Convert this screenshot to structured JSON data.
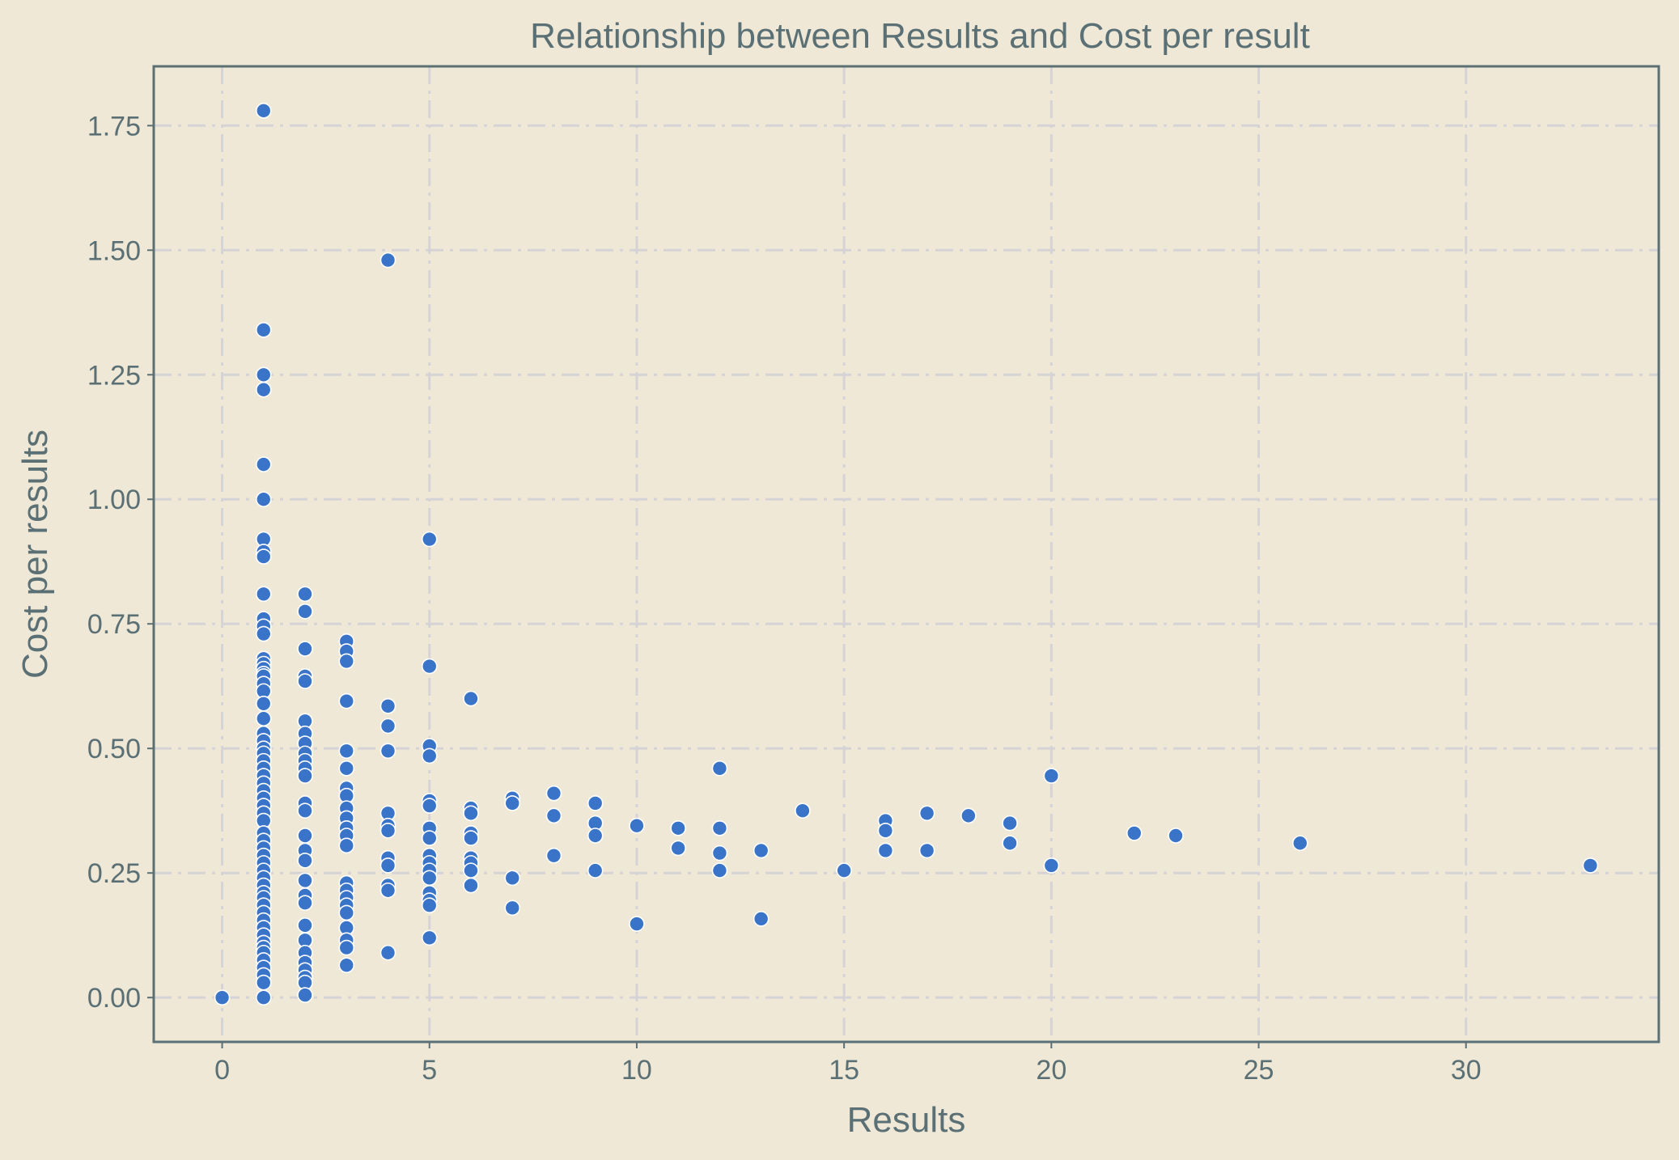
{
  "chart_data": {
    "type": "scatter",
    "title": "Relationship between Results and Cost per result",
    "xlabel": "Results",
    "ylabel": "Cost per results",
    "xlim": [
      -1.65,
      34.65
    ],
    "ylim": [
      -0.089,
      1.869
    ],
    "x_ticks": [
      0,
      5,
      10,
      15,
      20,
      25,
      30
    ],
    "x_tick_labels": [
      "0",
      "5",
      "10",
      "15",
      "20",
      "25",
      "30"
    ],
    "y_ticks": [
      0.0,
      0.25,
      0.5,
      0.75,
      1.0,
      1.25,
      1.5,
      1.75
    ],
    "y_tick_labels": [
      "0.00",
      "0.25",
      "0.50",
      "0.75",
      "1.00",
      "1.25",
      "1.50",
      "1.75"
    ],
    "grid": true,
    "colors": {
      "background": "#efe8d6",
      "point": "#3a74c9",
      "point_edge": "#ffffff",
      "text": "#5b7075",
      "grid": "#d6d3d6"
    },
    "points": [
      [
        0,
        0.0
      ],
      [
        1,
        1.78
      ],
      [
        1,
        1.34
      ],
      [
        1,
        1.25
      ],
      [
        1,
        1.22
      ],
      [
        1,
        1.07
      ],
      [
        1,
        1.0
      ],
      [
        1,
        0.92
      ],
      [
        1,
        0.895
      ],
      [
        1,
        0.885
      ],
      [
        1,
        0.81
      ],
      [
        1,
        0.76
      ],
      [
        1,
        0.745
      ],
      [
        1,
        0.73
      ],
      [
        1,
        0.68
      ],
      [
        1,
        0.67
      ],
      [
        1,
        0.66
      ],
      [
        1,
        0.65
      ],
      [
        1,
        0.645
      ],
      [
        1,
        0.63
      ],
      [
        1,
        0.615
      ],
      [
        1,
        0.59
      ],
      [
        1,
        0.56
      ],
      [
        1,
        0.53
      ],
      [
        1,
        0.515
      ],
      [
        1,
        0.5
      ],
      [
        1,
        0.49
      ],
      [
        1,
        0.475
      ],
      [
        1,
        0.46
      ],
      [
        1,
        0.445
      ],
      [
        1,
        0.43
      ],
      [
        1,
        0.415
      ],
      [
        1,
        0.4
      ],
      [
        1,
        0.385
      ],
      [
        1,
        0.37
      ],
      [
        1,
        0.355
      ],
      [
        1,
        0.33
      ],
      [
        1,
        0.315
      ],
      [
        1,
        0.3
      ],
      [
        1,
        0.285
      ],
      [
        1,
        0.27
      ],
      [
        1,
        0.255
      ],
      [
        1,
        0.24
      ],
      [
        1,
        0.225
      ],
      [
        1,
        0.21
      ],
      [
        1,
        0.2
      ],
      [
        1,
        0.185
      ],
      [
        1,
        0.17
      ],
      [
        1,
        0.155
      ],
      [
        1,
        0.14
      ],
      [
        1,
        0.125
      ],
      [
        1,
        0.11
      ],
      [
        1,
        0.1
      ],
      [
        1,
        0.09
      ],
      [
        1,
        0.075
      ],
      [
        1,
        0.06
      ],
      [
        1,
        0.045
      ],
      [
        1,
        0.03
      ],
      [
        1,
        0.0
      ],
      [
        2,
        0.81
      ],
      [
        2,
        0.775
      ],
      [
        2,
        0.7
      ],
      [
        2,
        0.645
      ],
      [
        2,
        0.635
      ],
      [
        2,
        0.555
      ],
      [
        2,
        0.53
      ],
      [
        2,
        0.51
      ],
      [
        2,
        0.49
      ],
      [
        2,
        0.475
      ],
      [
        2,
        0.46
      ],
      [
        2,
        0.445
      ],
      [
        2,
        0.39
      ],
      [
        2,
        0.375
      ],
      [
        2,
        0.325
      ],
      [
        2,
        0.295
      ],
      [
        2,
        0.275
      ],
      [
        2,
        0.235
      ],
      [
        2,
        0.205
      ],
      [
        2,
        0.19
      ],
      [
        2,
        0.145
      ],
      [
        2,
        0.115
      ],
      [
        2,
        0.09
      ],
      [
        2,
        0.07
      ],
      [
        2,
        0.055
      ],
      [
        2,
        0.04
      ],
      [
        2,
        0.03
      ],
      [
        2,
        0.005
      ],
      [
        3,
        0.715
      ],
      [
        3,
        0.695
      ],
      [
        3,
        0.675
      ],
      [
        3,
        0.595
      ],
      [
        3,
        0.495
      ],
      [
        3,
        0.46
      ],
      [
        3,
        0.42
      ],
      [
        3,
        0.405
      ],
      [
        3,
        0.38
      ],
      [
        3,
        0.36
      ],
      [
        3,
        0.34
      ],
      [
        3,
        0.325
      ],
      [
        3,
        0.305
      ],
      [
        3,
        0.23
      ],
      [
        3,
        0.215
      ],
      [
        3,
        0.2
      ],
      [
        3,
        0.185
      ],
      [
        3,
        0.17
      ],
      [
        3,
        0.14
      ],
      [
        3,
        0.115
      ],
      [
        3,
        0.1
      ],
      [
        3,
        0.065
      ],
      [
        4,
        1.48
      ],
      [
        4,
        0.585
      ],
      [
        4,
        0.545
      ],
      [
        4,
        0.495
      ],
      [
        4,
        0.37
      ],
      [
        4,
        0.345
      ],
      [
        4,
        0.335
      ],
      [
        4,
        0.28
      ],
      [
        4,
        0.265
      ],
      [
        4,
        0.225
      ],
      [
        4,
        0.215
      ],
      [
        4,
        0.09
      ],
      [
        5,
        0.92
      ],
      [
        5,
        0.665
      ],
      [
        5,
        0.505
      ],
      [
        5,
        0.485
      ],
      [
        5,
        0.395
      ],
      [
        5,
        0.385
      ],
      [
        5,
        0.34
      ],
      [
        5,
        0.32
      ],
      [
        5,
        0.285
      ],
      [
        5,
        0.27
      ],
      [
        5,
        0.255
      ],
      [
        5,
        0.24
      ],
      [
        5,
        0.21
      ],
      [
        5,
        0.195
      ],
      [
        5,
        0.185
      ],
      [
        5,
        0.12
      ],
      [
        6,
        0.6
      ],
      [
        6,
        0.38
      ],
      [
        6,
        0.37
      ],
      [
        6,
        0.33
      ],
      [
        6,
        0.32
      ],
      [
        6,
        0.28
      ],
      [
        6,
        0.27
      ],
      [
        6,
        0.255
      ],
      [
        6,
        0.225
      ],
      [
        7,
        0.4
      ],
      [
        7,
        0.39
      ],
      [
        7,
        0.24
      ],
      [
        7,
        0.18
      ],
      [
        8,
        0.41
      ],
      [
        8,
        0.365
      ],
      [
        8,
        0.285
      ],
      [
        9,
        0.39
      ],
      [
        9,
        0.35
      ],
      [
        9,
        0.325
      ],
      [
        9,
        0.255
      ],
      [
        10,
        0.345
      ],
      [
        10,
        0.148
      ],
      [
        11,
        0.34
      ],
      [
        11,
        0.3
      ],
      [
        12,
        0.46
      ],
      [
        12,
        0.34
      ],
      [
        12,
        0.29
      ],
      [
        12,
        0.255
      ],
      [
        13,
        0.295
      ],
      [
        13,
        0.158
      ],
      [
        14,
        0.375
      ],
      [
        15,
        0.255
      ],
      [
        16,
        0.355
      ],
      [
        16,
        0.335
      ],
      [
        16,
        0.295
      ],
      [
        17,
        0.37
      ],
      [
        17,
        0.295
      ],
      [
        18,
        0.365
      ],
      [
        19,
        0.35
      ],
      [
        19,
        0.31
      ],
      [
        20,
        0.445
      ],
      [
        20,
        0.265
      ],
      [
        22,
        0.33
      ],
      [
        23,
        0.325
      ],
      [
        26,
        0.31
      ],
      [
        33,
        0.265
      ]
    ]
  }
}
